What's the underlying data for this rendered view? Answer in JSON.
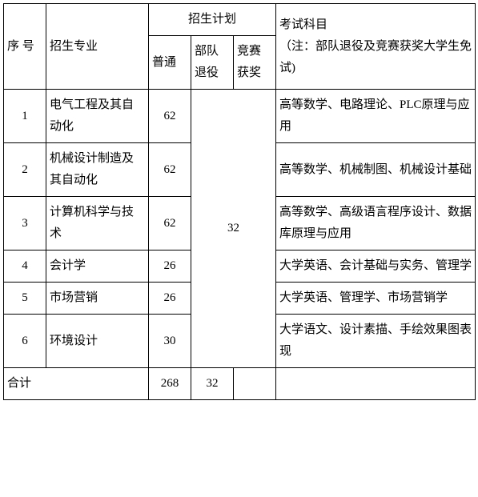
{
  "header": {
    "seq": "序 号",
    "major": "招生专业",
    "plan_group": "招生计划",
    "plan_normal": "普通",
    "plan_retire": "部队退役",
    "plan_award": "竞赛获奖",
    "exam": "考试科目",
    "exam_note": "（注：部队退役及竞赛获奖大学生免试)"
  },
  "rows": [
    {
      "seq": "1",
      "major": "电气工程及其自动化",
      "normal": "62",
      "exam": "高等数学、电路理论、PLC原理与应用"
    },
    {
      "seq": "2",
      "major": "机械设计制造及其自动化",
      "normal": "62",
      "exam": "高等数学、机械制图、机械设计基础"
    },
    {
      "seq": "3",
      "major": "计算机科学与技术",
      "normal": "62",
      "exam": "高等数学、高级语言程序设计、数据库原理与应用"
    },
    {
      "seq": "4",
      "major": "会计学",
      "normal": "26",
      "exam": "大学英语、会计基础与实务、管理学"
    },
    {
      "seq": "5",
      "major": "市场营销",
      "normal": "26",
      "exam": "大学英语、管理学、市场营销学"
    },
    {
      "seq": "6",
      "major": "环境设计",
      "normal": "30",
      "exam": "大学语文、设计素描、手绘效果图表现"
    }
  ],
  "merged_retire_award": "32",
  "total": {
    "label": "合计",
    "normal": "268",
    "retire_award": "32",
    "exam": ""
  }
}
